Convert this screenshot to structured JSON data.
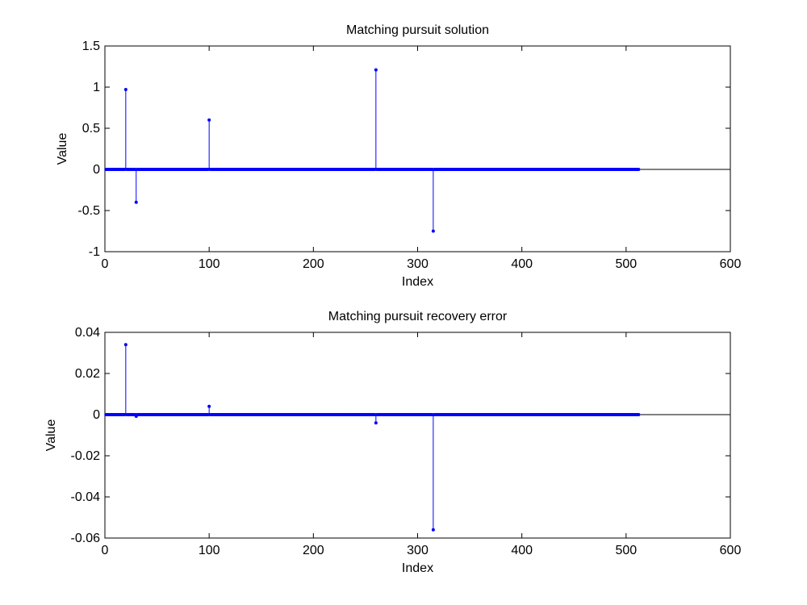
{
  "chart_data": [
    {
      "type": "stem",
      "title": "Matching pursuit solution",
      "xlabel": "Index",
      "ylabel": "Value",
      "xlim": [
        0,
        600
      ],
      "ylim": [
        -1,
        1.5
      ],
      "xticks": [
        0,
        100,
        200,
        300,
        400,
        500,
        600
      ],
      "yticks": [
        -1,
        -0.5,
        0,
        0.5,
        1,
        1.5
      ],
      "xtick_labels": [
        "0",
        "100",
        "200",
        "300",
        "400",
        "500",
        "600"
      ],
      "ytick_labels": [
        "-1",
        "-0.5",
        "0",
        "0.5",
        "1",
        "1.5"
      ],
      "n_points": 512,
      "baseline": 0,
      "nonzero": [
        {
          "x": 20,
          "y": 0.97
        },
        {
          "x": 30,
          "y": -0.4
        },
        {
          "x": 100,
          "y": 0.6
        },
        {
          "x": 260,
          "y": 1.21
        },
        {
          "x": 315,
          "y": -0.75
        }
      ],
      "color": "#0000ff"
    },
    {
      "type": "stem",
      "title": "Matching pursuit recovery error",
      "xlabel": "Index",
      "ylabel": "Value",
      "xlim": [
        0,
        600
      ],
      "ylim": [
        -0.06,
        0.04
      ],
      "xticks": [
        0,
        100,
        200,
        300,
        400,
        500,
        600
      ],
      "yticks": [
        -0.06,
        -0.04,
        -0.02,
        0,
        0.02,
        0.04
      ],
      "xtick_labels": [
        "0",
        "100",
        "200",
        "300",
        "400",
        "500",
        "600"
      ],
      "ytick_labels": [
        "-0.06",
        "-0.04",
        "-0.02",
        "0",
        "0.02",
        "0.04"
      ],
      "n_points": 512,
      "baseline": 0,
      "nonzero": [
        {
          "x": 20,
          "y": 0.034
        },
        {
          "x": 30,
          "y": -0.0008
        },
        {
          "x": 100,
          "y": 0.004
        },
        {
          "x": 260,
          "y": -0.004
        },
        {
          "x": 315,
          "y": -0.056
        }
      ],
      "color": "#0000ff"
    }
  ]
}
